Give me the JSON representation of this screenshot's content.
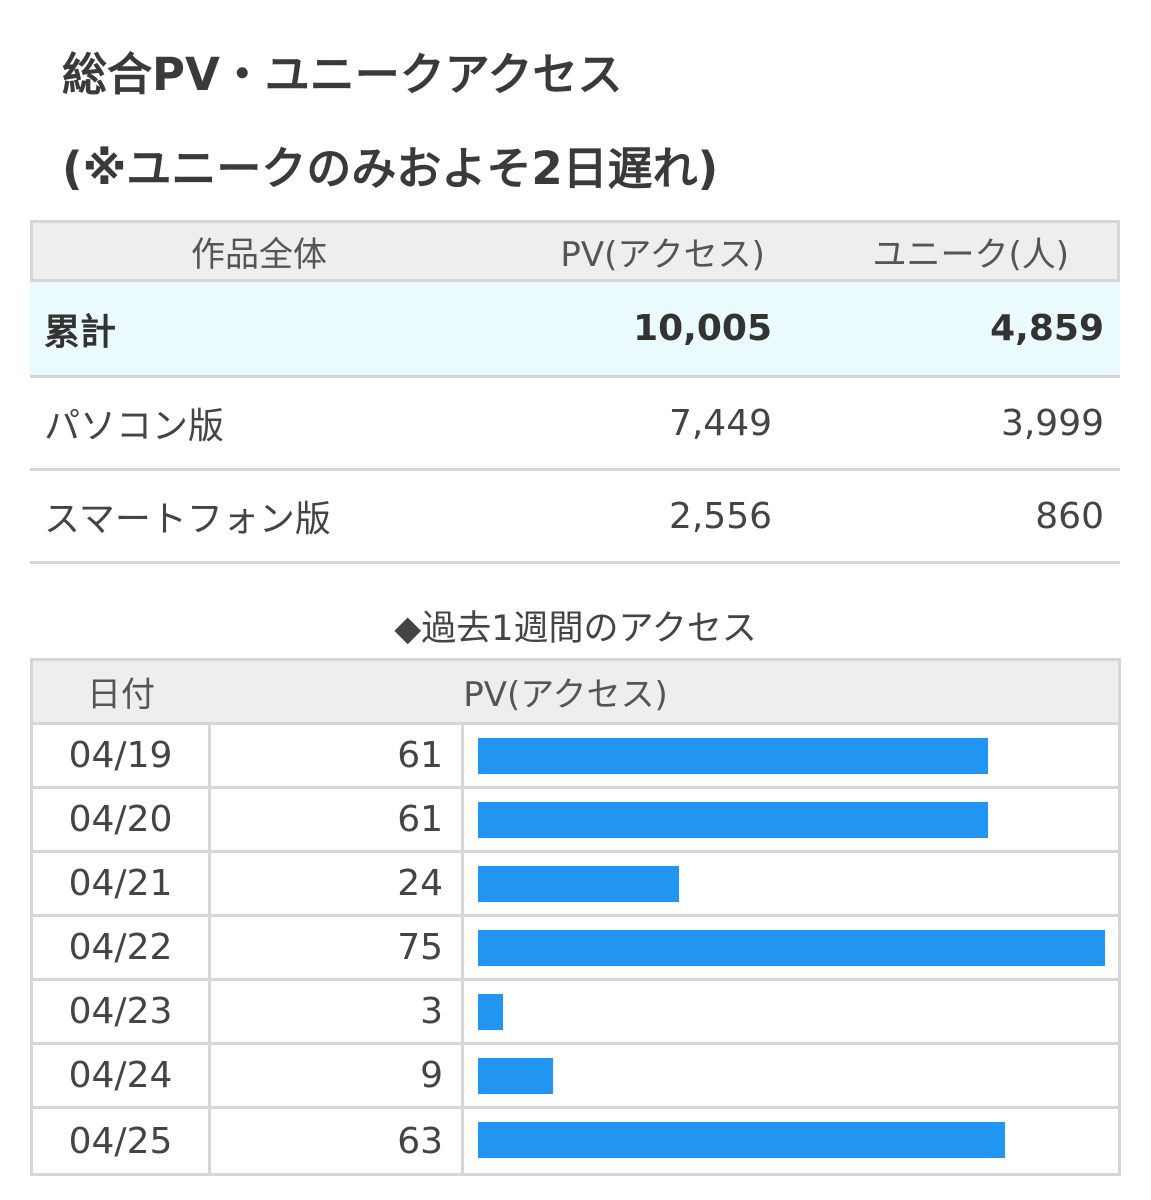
{
  "title": {
    "line1": "総合PV・ユニークアクセス",
    "line2": "(※ユニークのみおよそ2日遅れ)"
  },
  "summary": {
    "headers": [
      "作品全体",
      "PV(アクセス)",
      "ユニーク(人)"
    ],
    "rows": [
      {
        "label": "累計",
        "pv": "10,005",
        "unique": "4,859"
      },
      {
        "label": "パソコン版",
        "pv": "7,449",
        "unique": "3,999"
      },
      {
        "label": "スマートフォン版",
        "pv": "2,556",
        "unique": "860"
      }
    ]
  },
  "weekly": {
    "title": "◆過去1週間のアクセス",
    "headers": [
      "日付",
      "PV(アクセス)"
    ]
  },
  "colors": {
    "bar": "#2196f3",
    "total_row_bg": "#ebfbfd",
    "header_bg": "#eeeeee"
  },
  "chart_data": {
    "type": "bar",
    "orientation": "horizontal",
    "categories": [
      "04/19",
      "04/20",
      "04/21",
      "04/22",
      "04/23",
      "04/24",
      "04/25"
    ],
    "values": [
      61,
      61,
      24,
      75,
      3,
      9,
      63
    ],
    "title": "◆過去1週間のアクセス",
    "xlabel": "",
    "ylabel": "",
    "grid": false
  }
}
